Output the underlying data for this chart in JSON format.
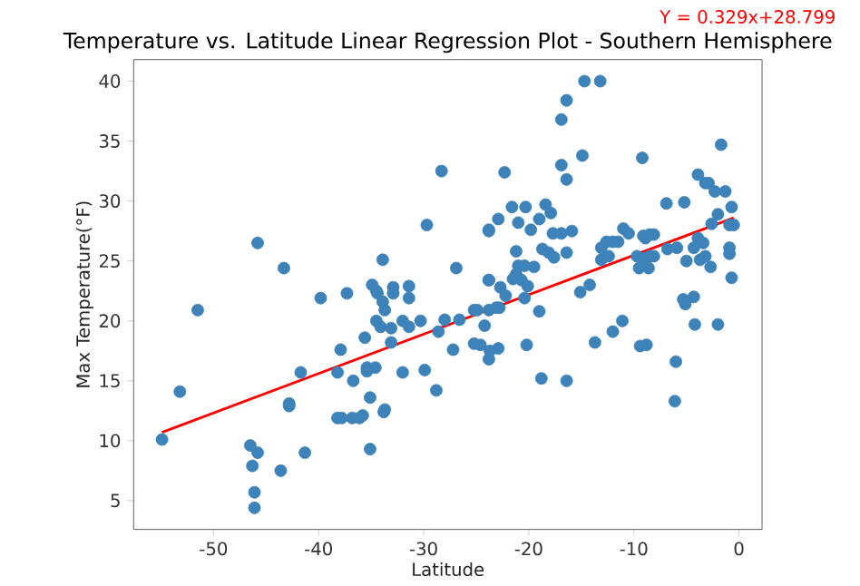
{
  "chart_data": {
    "type": "scatter",
    "title": "Temperature vs. Latitude Linear Regression Plot - Southern Hemisphere",
    "xlabel": "Latitude",
    "ylabel": "Max Temperature(°F)",
    "annotations": [
      "Y = 0.329x+28.799"
    ],
    "xlim": [
      -57.6,
      2.2
    ],
    "ylim": [
      2.6,
      41.8
    ],
    "xticks": [
      -50,
      -40,
      -30,
      -20,
      -10,
      0
    ],
    "yticks": [
      5,
      10,
      15,
      20,
      25,
      30,
      35,
      40
    ],
    "marker": "circle",
    "grid": false,
    "series": [
      {
        "color": "#3d82b8",
        "x": [
          -45.8,
          -43.3,
          -28.3,
          -29.7,
          -23.8,
          -33.9,
          -26.9,
          -23.8,
          -34.9,
          -34.5,
          -34.4,
          -32.9,
          -32.9,
          -31.4,
          -31.4,
          -37.3,
          -39.8,
          -33.9,
          -14.7,
          -13.2,
          -16.4,
          -16.9,
          -1.7,
          -14.9,
          -9.2,
          -16.9,
          -16.4,
          -22.3,
          -3.9,
          -3.2,
          -2.9,
          -2.3,
          -1.3,
          -6.9,
          -5.2,
          -0.7,
          -2.0,
          -2.6,
          -0.9,
          -0.5,
          -21.6,
          -20.3,
          -18.4,
          -17.9,
          -22.9,
          -23.8,
          -21.0,
          -19.8,
          -19.0,
          -17.7,
          -16.9,
          -15.9,
          -11.0,
          -10.5,
          -9.1,
          -8.5,
          -8.1,
          -8.9,
          -12.6,
          -12.0,
          -11.5,
          -13.1,
          -3.9,
          -3.4,
          -4.3,
          -6.8,
          -5.9,
          -0.9,
          -0.9,
          -21.2,
          -18.7,
          -18.1,
          -17.6,
          -16.4,
          -13.1,
          -12.4,
          -9.7,
          -9.1,
          -8.5,
          -9.5,
          -8.6,
          -8.1,
          -5.0,
          -3.7,
          -3.2,
          -2.7,
          -0.7,
          -21.0,
          -20.4,
          -19.5,
          -21.2,
          -21.5,
          -20.7,
          -23.8,
          -22.7,
          -20.1,
          -20.4,
          -14.2,
          -15.1,
          -5.3,
          -4.3,
          -51.5,
          -33.7,
          -34.5,
          -34.1,
          -33.1,
          -35.6,
          -32.0,
          -31.4,
          -30.3,
          -33.1,
          -37.9,
          -28.6,
          -28.0,
          -26.6,
          -27.2,
          -25.2,
          -24.9,
          -24.2,
          -23.8,
          -25.2,
          -24.6,
          -23.7,
          -23.8,
          -41.7,
          -38.2,
          -36.7,
          -35.4,
          -34.6,
          -35.4,
          -32.0,
          -29.9,
          -35.1,
          -33.7,
          -33.8,
          -53.2,
          -28.8,
          -42.8,
          -42.8,
          -38.2,
          -37.8,
          -36.8,
          -36.1,
          -35.8,
          -54.9,
          -46.5,
          -45.8,
          -46.3,
          -41.3,
          -43.6,
          -35.1,
          -46.1,
          -46.1,
          -22.2,
          -23.1,
          -22.8,
          -22.9,
          -20.2,
          -19.0,
          -18.8,
          -16.4,
          -13.7,
          -12.0,
          -11.1,
          -9.4,
          -8.8,
          -5.1,
          -4.2,
          -2.0,
          -6.0,
          -6.1
        ],
        "values": [
          26.5,
          24.4,
          32.5,
          28.0,
          27.5,
          25.1,
          24.4,
          23.4,
          23.0,
          22.5,
          22.3,
          22.8,
          22.3,
          22.9,
          21.9,
          22.3,
          21.9,
          21.6,
          40.0,
          40.0,
          38.4,
          36.8,
          34.7,
          33.8,
          33.6,
          33.0,
          31.8,
          32.4,
          32.2,
          31.5,
          31.5,
          30.8,
          30.8,
          29.8,
          29.9,
          29.5,
          28.9,
          28.1,
          28.0,
          28.0,
          29.5,
          29.5,
          29.7,
          29.0,
          28.5,
          27.6,
          28.2,
          27.6,
          28.5,
          27.3,
          27.3,
          27.5,
          27.7,
          27.3,
          27.1,
          27.2,
          27.2,
          26.9,
          26.6,
          26.6,
          26.6,
          26.1,
          26.9,
          26.5,
          26.1,
          26.0,
          26.1,
          26.1,
          25.6,
          25.8,
          26.0,
          25.7,
          25.3,
          25.7,
          25.1,
          25.4,
          25.4,
          25.2,
          25.4,
          24.4,
          24.4,
          25.4,
          25.0,
          25.1,
          25.4,
          24.5,
          23.6,
          24.6,
          24.6,
          24.5,
          23.9,
          23.5,
          23.4,
          23.4,
          22.8,
          22.9,
          21.9,
          23.0,
          22.4,
          21.8,
          22.0,
          20.9,
          20.9,
          20.0,
          19.5,
          19.4,
          18.6,
          20.0,
          19.5,
          20.0,
          18.2,
          17.6,
          19.1,
          20.1,
          20.1,
          17.6,
          20.9,
          20.9,
          19.6,
          20.9,
          18.1,
          18.0,
          17.5,
          16.8,
          15.7,
          15.7,
          15.0,
          16.1,
          16.1,
          15.8,
          15.7,
          15.9,
          13.6,
          12.6,
          12.4,
          14.1,
          14.2,
          13.1,
          12.9,
          11.9,
          11.9,
          11.9,
          11.9,
          12.1,
          10.1,
          9.6,
          9.0,
          7.9,
          9.0,
          7.5,
          9.3,
          5.7,
          4.4,
          22.1,
          21.1,
          21.1,
          17.7,
          18.0,
          20.8,
          15.2,
          15.0,
          18.2,
          19.1,
          20.0,
          17.9,
          18.0,
          21.4,
          19.7,
          19.7,
          16.6,
          13.3
        ]
      },
      {
        "type": "line",
        "color": "#ff0000",
        "marker": "none",
        "x": [
          -54.9,
          -0.5
        ],
        "values": [
          10.7,
          28.6
        ]
      }
    ]
  }
}
